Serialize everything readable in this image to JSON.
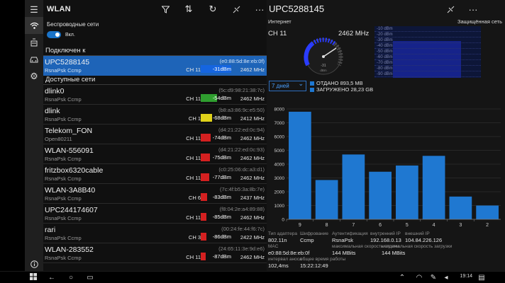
{
  "app": {
    "title": "WLAN"
  },
  "wifi": {
    "label": "Беспроводные сети",
    "state": "Вкл."
  },
  "sections": {
    "connected": "Подключен к",
    "available": "Доступные сети"
  },
  "connected_network": {
    "ssid": "UPC5288145",
    "mac": "(e0:88:5d:8e:eb:0f)",
    "security": "RsnaPsk Ccmp",
    "channel": "CH 11",
    "signal": "-31dBm",
    "signal_level": 0.95,
    "frequency": "2462 MHz",
    "color": "#1565e0"
  },
  "networks": [
    {
      "ssid": "dlink0",
      "mac": "(5c:d9:98:21:38:7c)",
      "security": "RsnaPsk Ccmp",
      "channel": "CH 11",
      "signal": "-54dBm",
      "signal_level": 0.52,
      "frequency": "2462 MHz",
      "color": "#2f9e2f"
    },
    {
      "ssid": "dlink",
      "mac": "(b8:a3:86:9c:e5:50)",
      "security": "RsnaPsk Ccmp",
      "channel": "CH 1",
      "signal": "-68dBm",
      "signal_level": 0.36,
      "frequency": "2412 MHz",
      "color": "#e0d21a"
    },
    {
      "ssid": "Telekom_FON",
      "mac": "(d4:21:22:ed:0c:94)",
      "security": "Open80211",
      "channel": "CH 11",
      "signal": "-74dBm",
      "signal_level": 0.3,
      "frequency": "2462 MHz",
      "color": "#d42020"
    },
    {
      "ssid": "WLAN-556091",
      "mac": "(d4:21:22:ed:0c:93)",
      "security": "RsnaPsk Ccmp",
      "channel": "CH 11",
      "signal": "-75dBm",
      "signal_level": 0.29,
      "frequency": "2462 MHz",
      "color": "#d42020"
    },
    {
      "ssid": "fritzbox6320cable",
      "mac": "(c0:25:06:dc:a3:d1)",
      "security": "RsnaPsk Ccmp",
      "channel": "CH 11",
      "signal": "-77dBm",
      "signal_level": 0.27,
      "frequency": "2462 MHz",
      "color": "#d42020"
    },
    {
      "ssid": "WLAN-3A8B40",
      "mac": "(7c:4f:b5:3a:8b:7e)",
      "security": "RsnaPsk Ccmp",
      "channel": "CH 6",
      "signal": "-83dBm",
      "signal_level": 0.2,
      "frequency": "2437 MHz",
      "color": "#d42020"
    },
    {
      "ssid": "UPC244174607",
      "mac": "(f8:04:2e:a4:89:88)",
      "security": "RsnaPsk Ccmp",
      "channel": "CH 11",
      "signal": "-85dBm",
      "signal_level": 0.18,
      "frequency": "2462 MHz",
      "color": "#d42020"
    },
    {
      "ssid": "rari",
      "mac": "(00:24:fe:44:f6:7c)",
      "security": "RsnaPsk Ccmp",
      "channel": "CH 3",
      "signal": "-86dBm",
      "signal_level": 0.17,
      "frequency": "2422 MHz",
      "color": "#d42020"
    },
    {
      "ssid": "WLAN-283552",
      "mac": "(24:65:11:3e:9d:e6)",
      "security": "RsnaPsk Ccmp",
      "channel": "CH 11",
      "signal": "-87dBm",
      "signal_level": 0.16,
      "frequency": "2462 MHz",
      "color": "#d42020"
    }
  ],
  "detail": {
    "title": "UPC5288145",
    "internet_label": "Интернет",
    "security_label": "Защищённая сеть",
    "channel": "CH 11",
    "frequency": "2462 MHz",
    "gauge_value": "-31",
    "gauge_unit": "dBm",
    "dbm_scale": [
      "-10 dBm",
      "-20 dBm",
      "-30 dBm",
      "-40 dBm",
      "-50 dBm",
      "-60 dBm",
      "-70 dBm",
      "-80 dBm",
      "-90 dBm"
    ],
    "range": "7 дней",
    "sent": "ОТДАНО 893,5 MB",
    "received": "ЗАГРУЖЕНО 28,23 GB"
  },
  "chart_data": {
    "type": "bar",
    "categories": [
      "9",
      "8",
      "7",
      "6",
      "5",
      "4",
      "3",
      "2"
    ],
    "values": [
      7800,
      2850,
      4700,
      3450,
      3900,
      4600,
      1650,
      1000
    ],
    "ylim": [
      0,
      8000
    ],
    "yticks": [
      0,
      1000,
      2000,
      3000,
      4000,
      5000,
      6000,
      7000,
      8000
    ],
    "grid": true,
    "color": "#1f78d1"
  },
  "info": [
    {
      "label": "Тип адаптера",
      "value": "802.11n"
    },
    {
      "label": "Шифрование",
      "value": "Ccmp"
    },
    {
      "label": "Аутентификация",
      "value": "RsnaPsk"
    },
    {
      "label": "внутренний IP",
      "value": "192.168.0.13"
    },
    {
      "label": "внешний IP",
      "value": "104.84.226.126"
    },
    {
      "label": "MAC",
      "value": "e0:88:5d:8e:eb:0f"
    },
    {
      "label": "максимальная скорость отдачи",
      "value": "144 MBits"
    },
    {
      "label": "максимальная скорость загрузки",
      "value": "144 MBits"
    },
    {
      "label": "интервал аноса",
      "value": "102,4ms"
    },
    {
      "label": "общее время работы",
      "value": "15:22:12:49"
    }
  ],
  "taskbar": {
    "time": "19:14"
  }
}
